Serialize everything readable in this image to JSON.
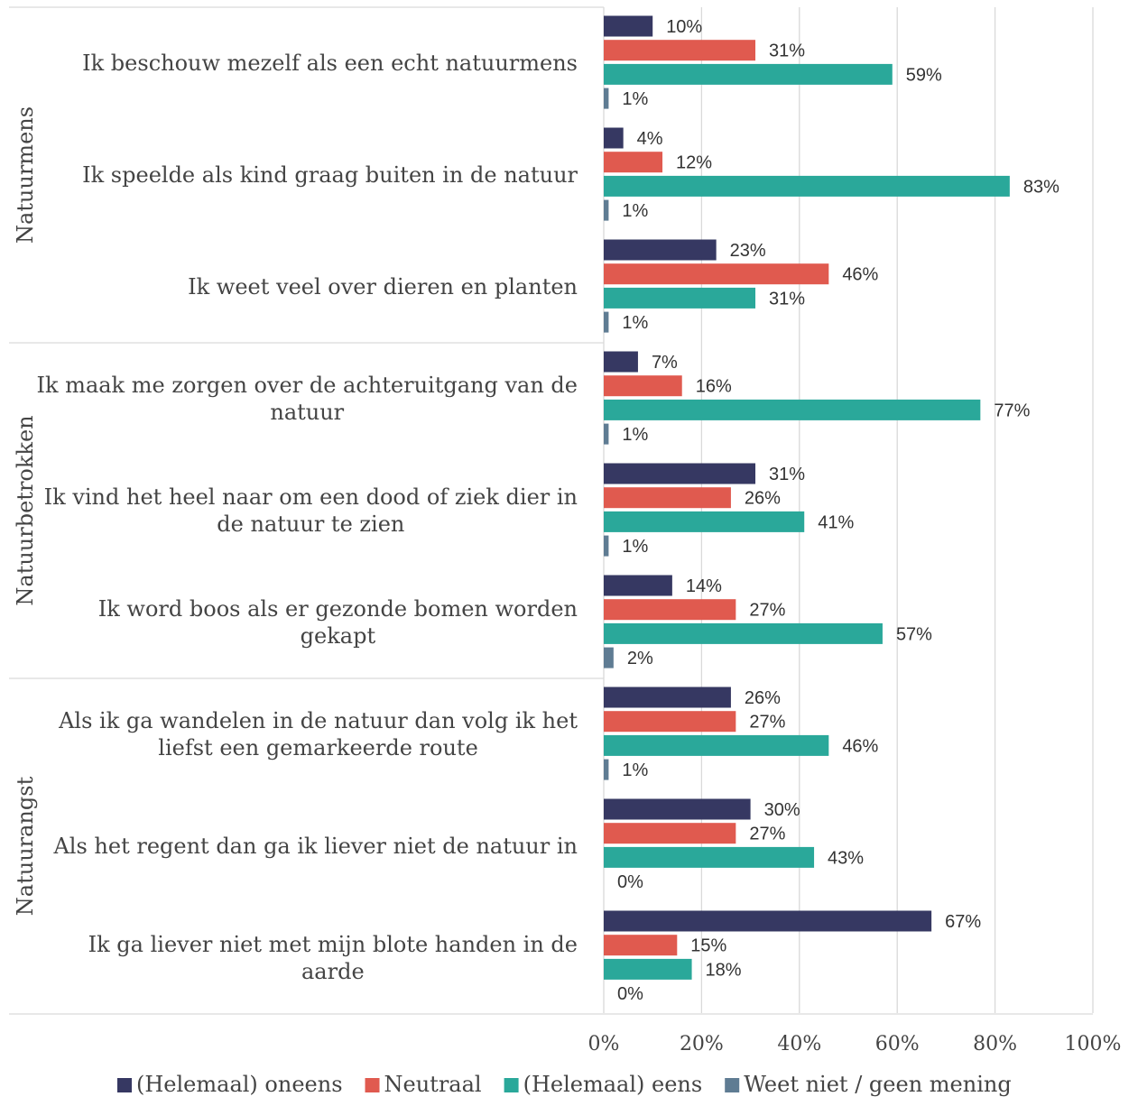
{
  "chart_data": {
    "type": "bar",
    "orientation": "horizontal",
    "xlim": [
      0,
      100
    ],
    "x_ticks": [
      "0%",
      "20%",
      "40%",
      "60%",
      "80%",
      "100%"
    ],
    "grid": "vertical",
    "legend_position": "bottom",
    "value_suffix": "%",
    "series": [
      {
        "name": "(Helemaal) oneens",
        "color": "#363862"
      },
      {
        "name": "Neutraal",
        "color": "#e05a4f"
      },
      {
        "name": "(Helemaal) eens",
        "color": "#2aa89a"
      },
      {
        "name": "Weet niet / geen mening",
        "color": "#5f7c93"
      }
    ],
    "groups": [
      {
        "name": "Natuurmens",
        "categories": [
          {
            "label": [
              "Ik beschouw mezelf als een echt natuurmens"
            ],
            "values": [
              10,
              31,
              59,
              1
            ]
          },
          {
            "label": [
              "Ik speelde als kind graag buiten in de natuur"
            ],
            "values": [
              4,
              12,
              83,
              1
            ]
          },
          {
            "label": [
              "Ik weet veel over dieren en planten"
            ],
            "values": [
              23,
              46,
              31,
              1
            ]
          }
        ]
      },
      {
        "name": "Natuurbetrokken",
        "categories": [
          {
            "label": [
              "Ik maak me zorgen over de achteruitgang van de",
              "natuur"
            ],
            "values": [
              7,
              16,
              77,
              1
            ]
          },
          {
            "label": [
              "Ik vind het heel naar om een dood of ziek dier in",
              "de natuur te zien"
            ],
            "values": [
              31,
              26,
              41,
              1
            ]
          },
          {
            "label": [
              "Ik word boos als er gezonde bomen worden",
              "gekapt"
            ],
            "values": [
              14,
              27,
              57,
              2
            ]
          }
        ]
      },
      {
        "name": "Natuurangst",
        "categories": [
          {
            "label": [
              "Als ik ga wandelen in de natuur dan volg ik het",
              "liefst een gemarkeerde route"
            ],
            "values": [
              26,
              27,
              46,
              1
            ]
          },
          {
            "label": [
              "Als het regent dan ga ik liever niet de natuur in"
            ],
            "values": [
              30,
              27,
              43,
              0
            ]
          },
          {
            "label": [
              "Ik ga liever niet met mijn blote handen in de",
              "aarde"
            ],
            "values": [
              67,
              15,
              18,
              0
            ]
          }
        ]
      }
    ]
  }
}
